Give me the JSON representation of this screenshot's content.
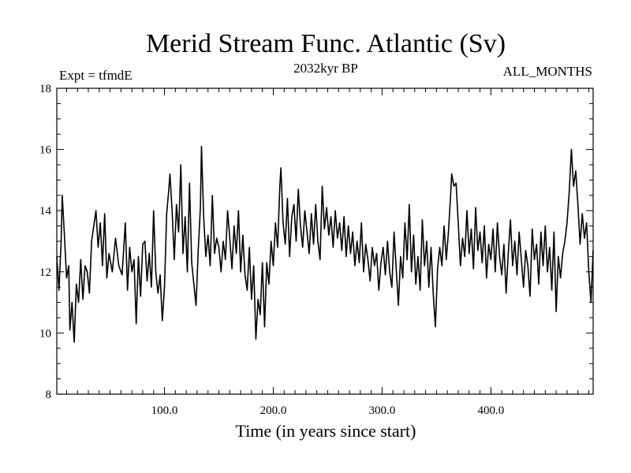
{
  "chart_data": {
    "type": "line",
    "title": "Merid Stream Func. Atlantic (Sv)",
    "subtitle_left": "Expt = tfmdE",
    "subtitle_center": "2032kyr BP",
    "subtitle_right": "ALL_MONTHS",
    "xlabel": "Time (in years since start)",
    "ylabel": "",
    "xlim": [
      1,
      494
    ],
    "ylim": [
      8,
      18
    ],
    "x_ticks": [
      100,
      200,
      300,
      400
    ],
    "x_tick_labels": [
      "100.0",
      "200.0",
      "300.0",
      "400.0"
    ],
    "y_ticks": [
      8,
      10,
      12,
      14,
      16,
      18
    ],
    "y_tick_labels": [
      "8",
      "10",
      "12",
      "14",
      "16",
      "18"
    ],
    "grid": false,
    "series": [
      {
        "name": "Merid Stream Func. Atlantic",
        "color": "#000000",
        "x_start": 1,
        "x_step": 1,
        "anchors": [
          [
            1,
            12.5
          ],
          [
            3,
            11.4
          ],
          [
            5,
            13.0
          ],
          [
            6,
            14.5
          ],
          [
            8,
            13.2
          ],
          [
            10,
            11.8
          ],
          [
            12,
            12.2
          ],
          [
            13,
            10.1
          ],
          [
            15,
            11.0
          ],
          [
            17,
            9.7
          ],
          [
            19,
            11.6
          ],
          [
            21,
            11.0
          ],
          [
            23,
            12.4
          ],
          [
            25,
            11.1
          ],
          [
            27,
            12.2
          ],
          [
            29,
            12.0
          ],
          [
            31,
            11.3
          ],
          [
            33,
            13.0
          ],
          [
            35,
            13.5
          ],
          [
            37,
            14.0
          ],
          [
            39,
            12.8
          ],
          [
            41,
            13.6
          ],
          [
            43,
            12.2
          ],
          [
            45,
            13.9
          ],
          [
            47,
            11.8
          ],
          [
            49,
            12.6
          ],
          [
            52,
            12.0
          ],
          [
            55,
            13.1
          ],
          [
            58,
            12.2
          ],
          [
            61,
            11.9
          ],
          [
            64,
            13.6
          ],
          [
            66,
            11.4
          ],
          [
            68,
            12.8
          ],
          [
            70,
            12.0
          ],
          [
            72,
            12.4
          ],
          [
            74,
            10.3
          ],
          [
            76,
            12.5
          ],
          [
            78,
            11.2
          ],
          [
            80,
            12.9
          ],
          [
            82,
            13.0
          ],
          [
            84,
            11.7
          ],
          [
            86,
            12.6
          ],
          [
            88,
            11.5
          ],
          [
            90,
            14.0
          ],
          [
            92,
            12.0
          ],
          [
            94,
            11.3
          ],
          [
            96,
            11.9
          ],
          [
            98,
            10.4
          ],
          [
            100,
            11.5
          ],
          [
            102,
            13.9
          ],
          [
            104,
            14.7
          ],
          [
            105,
            15.2
          ],
          [
            107,
            14.0
          ],
          [
            109,
            12.4
          ],
          [
            111,
            14.2
          ],
          [
            113,
            13.3
          ],
          [
            115,
            15.5
          ],
          [
            117,
            12.6
          ],
          [
            119,
            13.8
          ],
          [
            121,
            12.0
          ],
          [
            123,
            14.9
          ],
          [
            125,
            12.3
          ],
          [
            127,
            11.6
          ],
          [
            129,
            10.9
          ],
          [
            131,
            12.7
          ],
          [
            133,
            14.1
          ],
          [
            134,
            16.1
          ],
          [
            136,
            13.8
          ],
          [
            138,
            12.5
          ],
          [
            140,
            13.2
          ],
          [
            142,
            12.2
          ],
          [
            144,
            14.5
          ],
          [
            146,
            12.6
          ],
          [
            148,
            13.1
          ],
          [
            150,
            12.8
          ],
          [
            152,
            12.0
          ],
          [
            154,
            13.0
          ],
          [
            156,
            12.4
          ],
          [
            158,
            14.0
          ],
          [
            160,
            13.1
          ],
          [
            162,
            12.1
          ],
          [
            164,
            13.5
          ],
          [
            166,
            12.6
          ],
          [
            168,
            14.0
          ],
          [
            170,
            12.0
          ],
          [
            172,
            13.2
          ],
          [
            174,
            11.9
          ],
          [
            176,
            11.4
          ],
          [
            178,
            12.8
          ],
          [
            180,
            11.1
          ],
          [
            182,
            12.2
          ],
          [
            184,
            9.8
          ],
          [
            186,
            11.1
          ],
          [
            188,
            10.6
          ],
          [
            190,
            12.3
          ],
          [
            192,
            10.2
          ],
          [
            194,
            12.3
          ],
          [
            196,
            11.6
          ],
          [
            198,
            13.0
          ],
          [
            200,
            12.2
          ],
          [
            202,
            13.6
          ],
          [
            204,
            12.8
          ],
          [
            206,
            14.8
          ],
          [
            207,
            15.4
          ],
          [
            209,
            13.6
          ],
          [
            211,
            12.9
          ],
          [
            213,
            14.4
          ],
          [
            215,
            12.5
          ],
          [
            217,
            13.8
          ],
          [
            219,
            14.2
          ],
          [
            221,
            13.0
          ],
          [
            223,
            14.7
          ],
          [
            225,
            13.5
          ],
          [
            227,
            12.8
          ],
          [
            229,
            14.0
          ],
          [
            231,
            13.3
          ],
          [
            233,
            12.6
          ],
          [
            235,
            13.9
          ],
          [
            237,
            12.9
          ],
          [
            239,
            14.2
          ],
          [
            241,
            13.0
          ],
          [
            243,
            12.4
          ],
          [
            245,
            14.8
          ],
          [
            247,
            13.4
          ],
          [
            249,
            14.1
          ],
          [
            251,
            13.2
          ],
          [
            253,
            13.8
          ],
          [
            255,
            12.8
          ],
          [
            257,
            14.0
          ],
          [
            259,
            13.1
          ],
          [
            261,
            13.6
          ],
          [
            263,
            12.7
          ],
          [
            265,
            13.8
          ],
          [
            267,
            12.5
          ],
          [
            269,
            13.5
          ],
          [
            271,
            12.6
          ],
          [
            273,
            13.3
          ],
          [
            275,
            12.2
          ],
          [
            277,
            13.0
          ],
          [
            279,
            12.3
          ],
          [
            281,
            13.6
          ],
          [
            283,
            12.0
          ],
          [
            285,
            12.9
          ],
          [
            287,
            12.4
          ],
          [
            289,
            11.7
          ],
          [
            291,
            12.8
          ],
          [
            293,
            12.2
          ],
          [
            295,
            12.6
          ],
          [
            297,
            11.4
          ],
          [
            299,
            12.3
          ],
          [
            301,
            12.8
          ],
          [
            303,
            11.9
          ],
          [
            305,
            13.0
          ],
          [
            307,
            12.0
          ],
          [
            309,
            11.5
          ],
          [
            311,
            13.3
          ],
          [
            313,
            12.1
          ],
          [
            315,
            10.9
          ],
          [
            317,
            12.5
          ],
          [
            319,
            11.8
          ],
          [
            321,
            13.6
          ],
          [
            323,
            12.4
          ],
          [
            325,
            14.2
          ],
          [
            327,
            12.0
          ],
          [
            329,
            13.2
          ],
          [
            331,
            11.6
          ],
          [
            333,
            12.5
          ],
          [
            335,
            11.4
          ],
          [
            337,
            13.7
          ],
          [
            339,
            12.2
          ],
          [
            341,
            13.0
          ],
          [
            343,
            11.5
          ],
          [
            345,
            12.8
          ],
          [
            347,
            11.3
          ],
          [
            349,
            10.2
          ],
          [
            351,
            12.1
          ],
          [
            353,
            12.8
          ],
          [
            355,
            12.2
          ],
          [
            357,
            13.5
          ],
          [
            359,
            12.4
          ],
          [
            361,
            13.3
          ],
          [
            363,
            14.5
          ],
          [
            364,
            15.2
          ],
          [
            366,
            14.8
          ],
          [
            368,
            14.9
          ],
          [
            370,
            13.6
          ],
          [
            372,
            12.2
          ],
          [
            374,
            13.1
          ],
          [
            376,
            12.5
          ],
          [
            378,
            14.0
          ],
          [
            380,
            12.6
          ],
          [
            382,
            13.4
          ],
          [
            384,
            12.1
          ],
          [
            386,
            14.1
          ],
          [
            388,
            12.7
          ],
          [
            390,
            13.3
          ],
          [
            392,
            12.3
          ],
          [
            394,
            13.5
          ],
          [
            396,
            11.8
          ],
          [
            398,
            12.9
          ],
          [
            400,
            12.4
          ],
          [
            402,
            13.4
          ],
          [
            404,
            12.0
          ],
          [
            406,
            13.6
          ],
          [
            408,
            12.5
          ],
          [
            410,
            11.9
          ],
          [
            412,
            12.9
          ],
          [
            414,
            11.3
          ],
          [
            416,
            12.6
          ],
          [
            418,
            13.7
          ],
          [
            420,
            12.2
          ],
          [
            422,
            13.0
          ],
          [
            424,
            11.9
          ],
          [
            426,
            13.3
          ],
          [
            428,
            12.4
          ],
          [
            430,
            11.5
          ],
          [
            432,
            12.7
          ],
          [
            434,
            12.2
          ],
          [
            436,
            11.2
          ],
          [
            438,
            13.4
          ],
          [
            440,
            12.4
          ],
          [
            442,
            12.9
          ],
          [
            444,
            11.6
          ],
          [
            446,
            13.3
          ],
          [
            448,
            12.2
          ],
          [
            450,
            13.5
          ],
          [
            452,
            12.0
          ],
          [
            454,
            12.8
          ],
          [
            456,
            11.4
          ],
          [
            458,
            13.3
          ],
          [
            460,
            10.7
          ],
          [
            462,
            12.5
          ],
          [
            464,
            11.8
          ],
          [
            466,
            12.6
          ],
          [
            468,
            13.0
          ],
          [
            470,
            13.6
          ],
          [
            472,
            14.6
          ],
          [
            474,
            16.0
          ],
          [
            476,
            14.8
          ],
          [
            478,
            15.3
          ],
          [
            480,
            14.2
          ],
          [
            482,
            12.9
          ],
          [
            484,
            13.9
          ],
          [
            486,
            13.1
          ],
          [
            488,
            13.6
          ],
          [
            490,
            12.0
          ],
          [
            492,
            11.0
          ],
          [
            494,
            12.7
          ]
        ]
      }
    ]
  }
}
